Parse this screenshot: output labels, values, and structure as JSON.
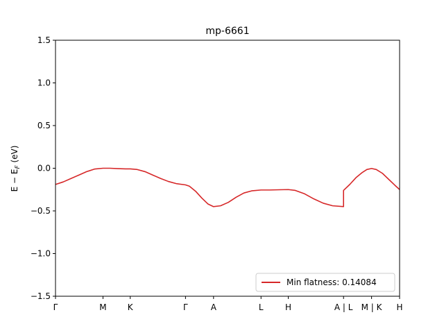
{
  "chart_data": {
    "type": "line",
    "title": "mp-6661",
    "ylabel": "E − E_F (eV)",
    "ylabel_main": "E − E",
    "ylabel_sub": "F",
    "ylabel_unit": " (eV)",
    "ylim": [
      -1.5,
      1.5
    ],
    "yticks": [
      {
        "value": 1.5,
        "label": "1.5"
      },
      {
        "value": 1.0,
        "label": "1.0"
      },
      {
        "value": 0.5,
        "label": "0.5"
      },
      {
        "value": 0.0,
        "label": "0.0"
      },
      {
        "value": -0.5,
        "label": "−0.5"
      },
      {
        "value": -1.0,
        "label": "−1.0"
      },
      {
        "value": -1.5,
        "label": "−1.5"
      }
    ],
    "xlim": [
      0,
      4.42
    ],
    "xticks": [
      {
        "value": 0.0,
        "label": "Γ"
      },
      {
        "value": 0.61,
        "label": "M"
      },
      {
        "value": 0.96,
        "label": "K"
      },
      {
        "value": 1.67,
        "label": "Γ"
      },
      {
        "value": 2.03,
        "label": "A"
      },
      {
        "value": 2.64,
        "label": "L"
      },
      {
        "value": 2.99,
        "label": "H"
      },
      {
        "value": 3.7,
        "label": "A | L"
      },
      {
        "value": 4.06,
        "label": "M | K"
      },
      {
        "value": 4.42,
        "label": "H"
      }
    ],
    "series": [
      {
        "name": "Min flatness: 0.14084",
        "color": "#d62728",
        "segments": [
          [
            [
              0.0,
              -0.19
            ],
            [
              0.1,
              -0.16
            ],
            [
              0.2,
              -0.12
            ],
            [
              0.3,
              -0.08
            ],
            [
              0.4,
              -0.04
            ],
            [
              0.5,
              -0.01
            ],
            [
              0.61,
              0.0
            ],
            [
              0.7,
              0.0
            ],
            [
              0.8,
              -0.005
            ],
            [
              0.9,
              -0.008
            ],
            [
              0.96,
              -0.008
            ],
            [
              1.05,
              -0.015
            ],
            [
              1.15,
              -0.04
            ],
            [
              1.25,
              -0.08
            ],
            [
              1.35,
              -0.12
            ],
            [
              1.45,
              -0.155
            ],
            [
              1.55,
              -0.18
            ],
            [
              1.67,
              -0.195
            ],
            [
              1.72,
              -0.21
            ],
            [
              1.8,
              -0.27
            ],
            [
              1.88,
              -0.35
            ],
            [
              1.96,
              -0.42
            ],
            [
              2.03,
              -0.45
            ],
            [
              2.12,
              -0.44
            ],
            [
              2.22,
              -0.4
            ],
            [
              2.32,
              -0.34
            ],
            [
              2.42,
              -0.29
            ],
            [
              2.52,
              -0.265
            ],
            [
              2.64,
              -0.255
            ],
            [
              2.75,
              -0.255
            ],
            [
              2.88,
              -0.252
            ],
            [
              2.99,
              -0.25
            ],
            [
              3.08,
              -0.26
            ],
            [
              3.2,
              -0.3
            ],
            [
              3.32,
              -0.36
            ],
            [
              3.44,
              -0.41
            ],
            [
              3.56,
              -0.44
            ],
            [
              3.7,
              -0.45
            ]
          ],
          [
            [
              3.7,
              -0.26
            ],
            [
              3.78,
              -0.19
            ],
            [
              3.86,
              -0.11
            ],
            [
              3.94,
              -0.05
            ],
            [
              4.0,
              -0.015
            ],
            [
              4.06,
              -0.003
            ],
            [
              4.12,
              -0.015
            ],
            [
              4.2,
              -0.06
            ],
            [
              4.28,
              -0.13
            ],
            [
              4.36,
              -0.2
            ],
            [
              4.42,
              -0.25
            ]
          ]
        ]
      }
    ],
    "legend": {
      "position": "lower-right",
      "label": "Min flatness: 0.14084"
    },
    "grid": false
  }
}
